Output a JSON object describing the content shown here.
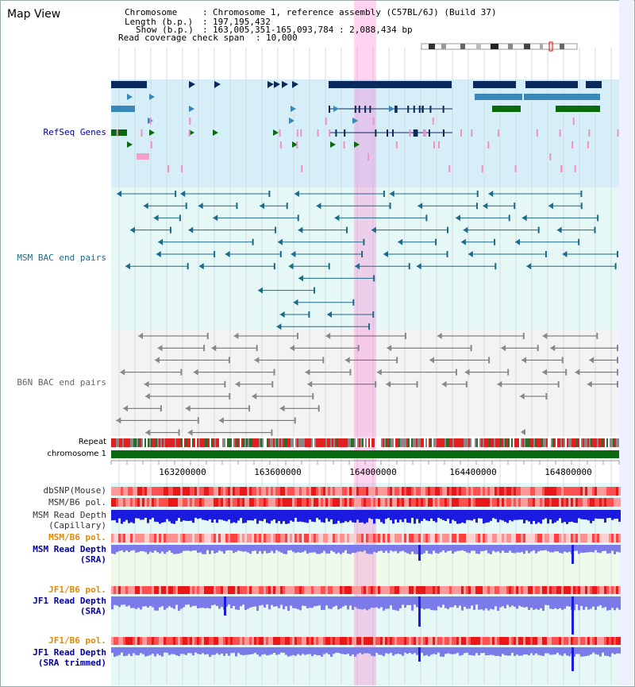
{
  "title": "Map View",
  "info": {
    "chromosome_label": "Chromosome",
    "chromosome_value": "Chromosome 1, reference assembly (C57BL/6J) (Build 37)",
    "length_label": "Length (b.p.)",
    "length_value": "197,195,432",
    "show_label": "Show (b.p.)",
    "show_value": "163,005,351-165,093,784 : 2,088,434 bp",
    "coverage_label": "Read coverage check span",
    "coverage_value": "10,000"
  },
  "tracks": {
    "refseq": "RefSeq Genes",
    "msm_bac": "MSM BAC end pairs",
    "b6n_bac": "B6N BAC end pairs",
    "repeat": "Repeat",
    "chromosome": "chromosome 1",
    "dbsnp": "dbSNP(Mouse)",
    "msm_b6_pol": "MSM/B6 pol.",
    "msm_depth_cap_1": "MSM Read Depth",
    "msm_depth_cap_2": "(Capillary)",
    "msm_b6_pol2": "MSM/B6 pol.",
    "msm_depth_sra_1": "MSM Read Depth",
    "msm_depth_sra_2": "(SRA)",
    "jf1_pol": "JF1/B6 pol.",
    "jf1_depth_1": "JF1 Read Depth",
    "jf1_depth_2": "(SRA)",
    "jf1_pol2": "JF1/B6 pol.",
    "jf1_trim_1": "JF1 Read Depth",
    "jf1_trim_2": "(SRA trimmed)"
  },
  "ruler": [
    "163200000",
    "163600000",
    "164000000",
    "164400000",
    "164800000"
  ],
  "colors": {
    "refseq_navy": "#0a2a5e",
    "refseq_teal": "#3a88b8",
    "refseq_green": "#0a6a10",
    "msm_bac": "#1a6a8a",
    "b6n_bac": "#666666",
    "depth_blue": "#1a1ae0",
    "sra_blue": "#7a7ae8",
    "highlight": "#ff66cc",
    "msm_orange": "#e08a00",
    "label_blue": "#0000a0"
  }
}
